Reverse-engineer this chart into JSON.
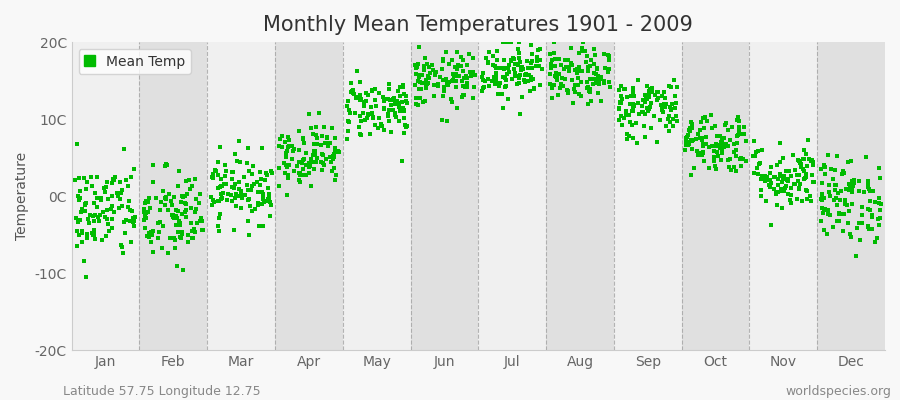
{
  "title": "Monthly Mean Temperatures 1901 - 2009",
  "ylabel": "Temperature",
  "ylim": [
    -20,
    20
  ],
  "yticks": [
    -20,
    -10,
    0,
    10,
    20
  ],
  "ytick_labels": [
    "-20C",
    "-10C",
    "0C",
    "10C",
    "20C"
  ],
  "months": [
    "Jan",
    "Feb",
    "Mar",
    "Apr",
    "May",
    "Jun",
    "Jul",
    "Aug",
    "Sep",
    "Oct",
    "Nov",
    "Dec"
  ],
  "month_means": [
    -2.0,
    -2.8,
    1.0,
    5.5,
    11.5,
    15.0,
    16.5,
    15.5,
    11.5,
    7.0,
    2.5,
    -0.5
  ],
  "month_stds": [
    3.2,
    3.2,
    2.2,
    2.0,
    2.0,
    1.8,
    2.0,
    1.8,
    2.0,
    2.0,
    2.2,
    2.8
  ],
  "n_years": 109,
  "marker_color": "#00bb00",
  "marker": "s",
  "marker_size": 3.0,
  "plot_bg_light": "#f0f0f0",
  "plot_bg_dark": "#e0e0e0",
  "fig_bg_color": "#f8f8f8",
  "grid_color": "#999999",
  "title_fontsize": 15,
  "axis_fontsize": 10,
  "tick_fontsize": 10,
  "legend_label": "Mean Temp",
  "footer_left": "Latitude 57.75 Longitude 12.75",
  "footer_right": "worldspecies.org",
  "footer_fontsize": 9,
  "seed": 42
}
